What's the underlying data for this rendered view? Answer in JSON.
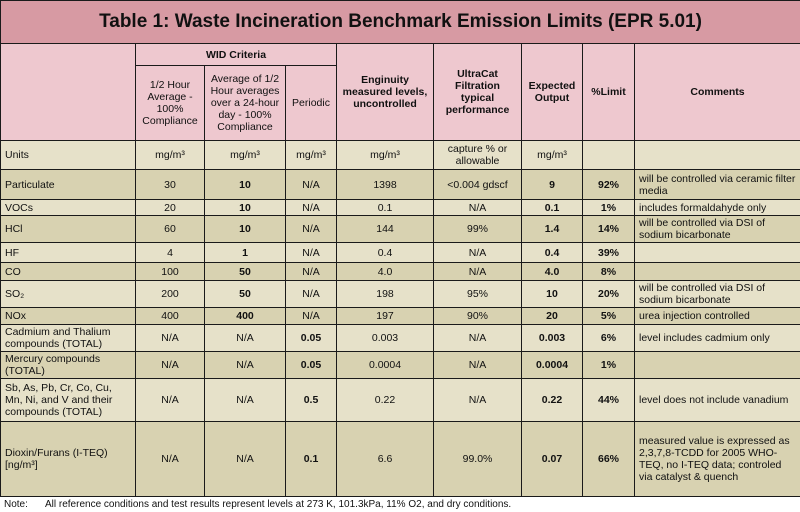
{
  "title": "Table 1: Waste Incineration Benchmark Emission Limits (EPR 5.01)",
  "headers": {
    "wid_criteria": "WID Criteria",
    "half_hour": "1/2 Hour Average - 100% Compliance",
    "avg_24h": "Average of 1/2 Hour averages over a 24-hour day - 100% Compliance",
    "periodic": "Periodic",
    "enginuity": "Enginuity measured levels, uncontrolled",
    "ultracat": "UltraCat Filtration typical performance",
    "expected": "Expected Output",
    "pct_limit": "%Limit",
    "comments": "Comments"
  },
  "units_row": {
    "label": "Units",
    "half_hour": "mg/m³",
    "avg_24h": "mg/m³",
    "periodic": "mg/m³",
    "enginuity": "mg/m³",
    "ultracat": "capture % or allowable",
    "expected": "mg/m³",
    "pct_limit": "",
    "comments": ""
  },
  "rows": [
    {
      "name": "Particulate",
      "half": "30",
      "avg": "10",
      "per": "N/A",
      "eng": "1398",
      "ultra": "<0.004 gdscf",
      "exp": "9",
      "pct": "92%",
      "comment": "will be controlled via ceramic filter media"
    },
    {
      "name": "VOCs",
      "half": "20",
      "avg": "10",
      "per": "N/A",
      "eng": "0.1",
      "ultra": "N/A",
      "exp": "0.1",
      "pct": "1%",
      "comment": "includes formaldahyde only"
    },
    {
      "name": "HCl",
      "half": "60",
      "avg": "10",
      "per": "N/A",
      "eng": "144",
      "ultra": "99%",
      "exp": "1.4",
      "pct": "14%",
      "comment": "will be controlled via DSI of sodium bicarbonate"
    },
    {
      "name": "HF",
      "half": "4",
      "avg": "1",
      "per": "N/A",
      "eng": "0.4",
      "ultra": "N/A",
      "exp": "0.4",
      "pct": "39%",
      "comment": ""
    },
    {
      "name": "CO",
      "half": "100",
      "avg": "50",
      "per": "N/A",
      "eng": "4.0",
      "ultra": "N/A",
      "exp": "4.0",
      "pct": "8%",
      "comment": ""
    },
    {
      "name": "SO₂",
      "half": "200",
      "avg": "50",
      "per": "N/A",
      "eng": "198",
      "ultra": "95%",
      "exp": "10",
      "pct": "20%",
      "comment": "will be controlled via DSI of sodium bicarbonate"
    },
    {
      "name": "NOx",
      "half": "400",
      "avg": "400",
      "per": "N/A",
      "eng": "197",
      "ultra": "90%",
      "exp": "20",
      "pct": "5%",
      "comment": "urea injection controlled"
    },
    {
      "name": "Cadmium and Thalium compounds (TOTAL)",
      "half": "N/A",
      "avg": "N/A",
      "per": "0.05",
      "eng": "0.003",
      "ultra": "N/A",
      "exp": "0.003",
      "pct": "6%",
      "comment": "level includes cadmium only"
    },
    {
      "name": "Mercury compounds (TOTAL)",
      "half": "N/A",
      "avg": "N/A",
      "per": "0.05",
      "eng": "0.0004",
      "ultra": "N/A",
      "exp": "0.0004",
      "pct": "1%",
      "comment": ""
    },
    {
      "name": "Sb, As, Pb, Cr, Co, Cu, Mn, Ni, and V and their compounds (TOTAL)",
      "half": "N/A",
      "avg": "N/A",
      "per": "0.5",
      "eng": "0.22",
      "ultra": "N/A",
      "exp": "0.22",
      "pct": "44%",
      "comment": "level does not include vanadium"
    },
    {
      "name": "Dioxin/Furans (I-TEQ) [ng/m³]",
      "half": "N/A",
      "avg": "N/A",
      "per": "0.1",
      "eng": "6.6",
      "ultra": "99.0%",
      "exp": "0.07",
      "pct": "66%",
      "comment": "measured value is expressed as 2,3,7,8-TCDD for 2005 WHO-TEQ, no I-TEQ data; controled via catalyst & quench"
    }
  ],
  "note": {
    "label": "Note:",
    "text": "All reference conditions and test results represent levels at 273 K, 101.3kPa, 11% O2, and dry conditions."
  }
}
